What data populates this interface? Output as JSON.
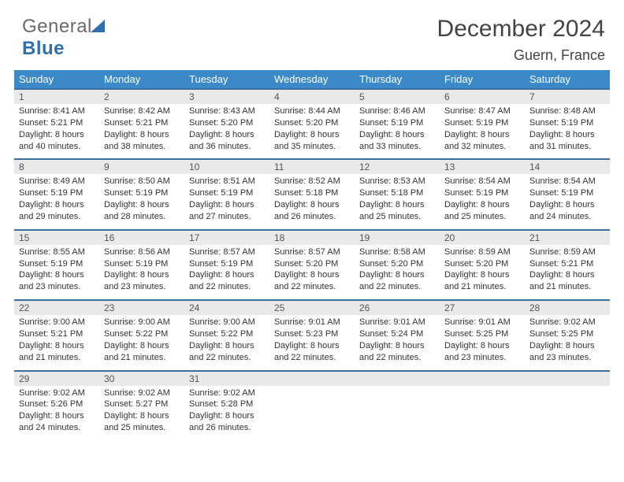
{
  "brand": {
    "part1": "General",
    "part2": "Blue"
  },
  "title": "December 2024",
  "location": "Guern, France",
  "colors": {
    "header_bg": "#3b89c9",
    "header_text": "#ffffff",
    "row_border": "#3b6fa0",
    "daynum_bg": "#e9e9e9",
    "logo_blue": "#2f6fb0"
  },
  "weekdays": [
    "Sunday",
    "Monday",
    "Tuesday",
    "Wednesday",
    "Thursday",
    "Friday",
    "Saturday"
  ],
  "weeks": [
    [
      {
        "n": "1",
        "sr": "8:41 AM",
        "ss": "5:21 PM",
        "dl": "8 hours and 40 minutes."
      },
      {
        "n": "2",
        "sr": "8:42 AM",
        "ss": "5:21 PM",
        "dl": "8 hours and 38 minutes."
      },
      {
        "n": "3",
        "sr": "8:43 AM",
        "ss": "5:20 PM",
        "dl": "8 hours and 36 minutes."
      },
      {
        "n": "4",
        "sr": "8:44 AM",
        "ss": "5:20 PM",
        "dl": "8 hours and 35 minutes."
      },
      {
        "n": "5",
        "sr": "8:46 AM",
        "ss": "5:19 PM",
        "dl": "8 hours and 33 minutes."
      },
      {
        "n": "6",
        "sr": "8:47 AM",
        "ss": "5:19 PM",
        "dl": "8 hours and 32 minutes."
      },
      {
        "n": "7",
        "sr": "8:48 AM",
        "ss": "5:19 PM",
        "dl": "8 hours and 31 minutes."
      }
    ],
    [
      {
        "n": "8",
        "sr": "8:49 AM",
        "ss": "5:19 PM",
        "dl": "8 hours and 29 minutes."
      },
      {
        "n": "9",
        "sr": "8:50 AM",
        "ss": "5:19 PM",
        "dl": "8 hours and 28 minutes."
      },
      {
        "n": "10",
        "sr": "8:51 AM",
        "ss": "5:19 PM",
        "dl": "8 hours and 27 minutes."
      },
      {
        "n": "11",
        "sr": "8:52 AM",
        "ss": "5:18 PM",
        "dl": "8 hours and 26 minutes."
      },
      {
        "n": "12",
        "sr": "8:53 AM",
        "ss": "5:18 PM",
        "dl": "8 hours and 25 minutes."
      },
      {
        "n": "13",
        "sr": "8:54 AM",
        "ss": "5:19 PM",
        "dl": "8 hours and 25 minutes."
      },
      {
        "n": "14",
        "sr": "8:54 AM",
        "ss": "5:19 PM",
        "dl": "8 hours and 24 minutes."
      }
    ],
    [
      {
        "n": "15",
        "sr": "8:55 AM",
        "ss": "5:19 PM",
        "dl": "8 hours and 23 minutes."
      },
      {
        "n": "16",
        "sr": "8:56 AM",
        "ss": "5:19 PM",
        "dl": "8 hours and 23 minutes."
      },
      {
        "n": "17",
        "sr": "8:57 AM",
        "ss": "5:19 PM",
        "dl": "8 hours and 22 minutes."
      },
      {
        "n": "18",
        "sr": "8:57 AM",
        "ss": "5:20 PM",
        "dl": "8 hours and 22 minutes."
      },
      {
        "n": "19",
        "sr": "8:58 AM",
        "ss": "5:20 PM",
        "dl": "8 hours and 22 minutes."
      },
      {
        "n": "20",
        "sr": "8:59 AM",
        "ss": "5:20 PM",
        "dl": "8 hours and 21 minutes."
      },
      {
        "n": "21",
        "sr": "8:59 AM",
        "ss": "5:21 PM",
        "dl": "8 hours and 21 minutes."
      }
    ],
    [
      {
        "n": "22",
        "sr": "9:00 AM",
        "ss": "5:21 PM",
        "dl": "8 hours and 21 minutes."
      },
      {
        "n": "23",
        "sr": "9:00 AM",
        "ss": "5:22 PM",
        "dl": "8 hours and 21 minutes."
      },
      {
        "n": "24",
        "sr": "9:00 AM",
        "ss": "5:22 PM",
        "dl": "8 hours and 22 minutes."
      },
      {
        "n": "25",
        "sr": "9:01 AM",
        "ss": "5:23 PM",
        "dl": "8 hours and 22 minutes."
      },
      {
        "n": "26",
        "sr": "9:01 AM",
        "ss": "5:24 PM",
        "dl": "8 hours and 22 minutes."
      },
      {
        "n": "27",
        "sr": "9:01 AM",
        "ss": "5:25 PM",
        "dl": "8 hours and 23 minutes."
      },
      {
        "n": "28",
        "sr": "9:02 AM",
        "ss": "5:25 PM",
        "dl": "8 hours and 23 minutes."
      }
    ],
    [
      {
        "n": "29",
        "sr": "9:02 AM",
        "ss": "5:26 PM",
        "dl": "8 hours and 24 minutes."
      },
      {
        "n": "30",
        "sr": "9:02 AM",
        "ss": "5:27 PM",
        "dl": "8 hours and 25 minutes."
      },
      {
        "n": "31",
        "sr": "9:02 AM",
        "ss": "5:28 PM",
        "dl": "8 hours and 26 minutes."
      },
      null,
      null,
      null,
      null
    ]
  ],
  "labels": {
    "sunrise": "Sunrise:",
    "sunset": "Sunset:",
    "daylight": "Daylight:"
  }
}
